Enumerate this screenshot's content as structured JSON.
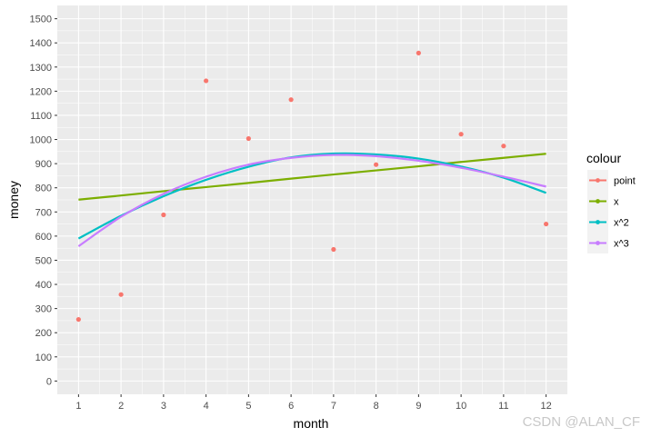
{
  "chart_data": {
    "type": "scatter",
    "xlabel": "month",
    "ylabel": "money",
    "xlim": [
      0.5,
      12.5
    ],
    "ylim": [
      -55,
      1555
    ],
    "x_ticks": [
      1,
      2,
      3,
      4,
      5,
      6,
      7,
      8,
      9,
      10,
      11,
      12
    ],
    "y_ticks": [
      0,
      100,
      200,
      300,
      400,
      500,
      600,
      700,
      800,
      900,
      1000,
      1100,
      1200,
      1300,
      1400,
      1500
    ],
    "legend_title": "colour",
    "legend_position": "right",
    "series": [
      {
        "name": "point",
        "kind": "points",
        "color": "#F8766D",
        "x": [
          1,
          2,
          3,
          4,
          5,
          6,
          7,
          8,
          9,
          10,
          11,
          12
        ],
        "y": [
          255,
          358,
          688,
          1243,
          1004,
          1165,
          545,
          896,
          1358,
          1022,
          973,
          650
        ]
      },
      {
        "name": "x",
        "kind": "line",
        "color": "#7CAE00",
        "x": [
          1,
          2,
          3,
          4,
          5,
          6,
          7,
          8,
          9,
          10,
          11,
          12
        ],
        "y": [
          751,
          768,
          786,
          803,
          820,
          838,
          855,
          872,
          889,
          907,
          924,
          941
        ]
      },
      {
        "name": "x^2",
        "kind": "line",
        "color": "#00BFC4",
        "x": [
          1,
          2,
          3,
          4,
          5,
          6,
          7,
          8,
          9,
          10,
          11,
          12
        ],
        "y": [
          590,
          684,
          765,
          833,
          887,
          926,
          942,
          938,
          921,
          888,
          842,
          779
        ]
      },
      {
        "name": "x^3",
        "kind": "line",
        "color": "#C77CFF",
        "x": [
          1,
          2,
          3,
          4,
          5,
          6,
          7,
          8,
          9,
          10,
          11,
          12
        ],
        "y": [
          558,
          680,
          775,
          846,
          896,
          924,
          936,
          931,
          912,
          883,
          846,
          805
        ]
      }
    ]
  },
  "watermark": "CSDN @ALAN_CF"
}
